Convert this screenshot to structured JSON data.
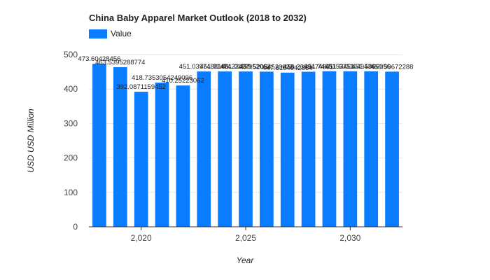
{
  "chart_data": {
    "type": "bar",
    "title": "China Baby Apparel Market Outlook (2018 to 2032)",
    "legend": [
      "Value"
    ],
    "legend_position": "top-left",
    "xlabel": "Year",
    "ylabel": "USD USD Million",
    "ylim": [
      0,
      500
    ],
    "yticks": [
      0,
      100,
      200,
      300,
      400,
      500
    ],
    "xticks": [
      2020,
      2025,
      2030
    ],
    "xtick_labels": [
      "2,020",
      "2,025",
      "2,030"
    ],
    "grid": true,
    "series": [
      {
        "name": "Value",
        "color": "#0a7cff",
        "x": [
          2018,
          2019,
          2020,
          2021,
          2022,
          2023,
          2024,
          2025,
          2026,
          2027,
          2028,
          2029,
          2030,
          2031,
          2032
        ],
        "values": [
          473.6,
          463.5,
          392.1,
          418.7,
          410.3,
          451.0,
          451.0,
          451.0,
          450.5,
          447.6,
          450.2,
          451.7,
          451.6,
          451.5,
          450.5
        ],
        "data_labels": [
          "473.60428456",
          "463.5395288774",
          "392.0871159452",
          "418.7353054249096",
          "410.25223062",
          "451.0397488188",
          "451.0147423437",
          "451.0197952062",
          "450.52034520023",
          "447.6104042864",
          "450.2399474861",
          "451.7405153451",
          "451.6031049436",
          "451.5006096",
          "450.50672288"
        ]
      }
    ]
  }
}
